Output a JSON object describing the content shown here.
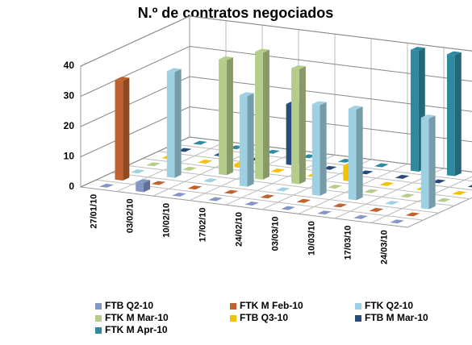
{
  "chart_data": {
    "type": "bar3d",
    "title": "N.º de contratos negociados",
    "categories": [
      "27/01/10",
      "03/02/10",
      "10/02/10",
      "17/02/10",
      "24/02/10",
      "03/03/10",
      "10/03/10",
      "17/03/10",
      "24/03/10"
    ],
    "series": [
      {
        "name": "FTB Q2-10",
        "color": "#8496c8",
        "values": [
          0,
          3,
          0,
          0,
          0,
          0,
          0,
          0,
          0
        ]
      },
      {
        "name": "FTK M Feb-10",
        "color": "#c0622e",
        "values": [
          33,
          0,
          0,
          0,
          0,
          0,
          0,
          0,
          0
        ]
      },
      {
        "name": "FTK Q2-10",
        "color": "#9dd1e1",
        "values": [
          0,
          35,
          0,
          30,
          0,
          30,
          30,
          0,
          30
        ]
      },
      {
        "name": "FTK M Mar-10",
        "color": "#b5cc8a",
        "values": [
          0,
          0,
          38,
          42,
          38,
          0,
          0,
          0,
          0
        ]
      },
      {
        "name": "FTB Q3-10",
        "color": "#f5c000",
        "values": [
          0,
          0,
          1,
          0,
          0,
          5,
          0,
          0,
          0
        ]
      },
      {
        "name": "FTB M Mar-10",
        "color": "#2a4a7a",
        "values": [
          0,
          0,
          0,
          20,
          0,
          0,
          0,
          0,
          0
        ]
      },
      {
        "name": "FTK M Apr-10",
        "color": "#2f8aa0",
        "values": [
          0,
          0,
          0,
          0,
          0,
          0,
          40,
          40,
          40
        ]
      }
    ],
    "ylim": [
      0,
      40
    ],
    "yticks": [
      0,
      10,
      20,
      30,
      40
    ],
    "grid": true
  }
}
